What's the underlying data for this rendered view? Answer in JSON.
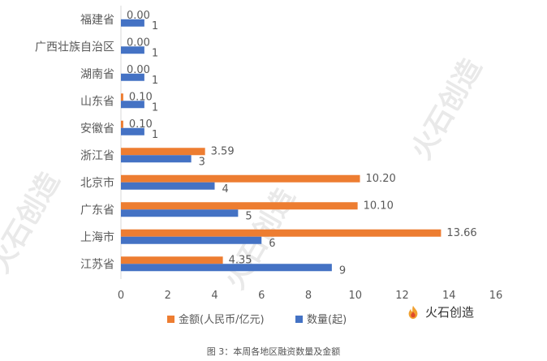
{
  "brand": {
    "name": "火石创造",
    "icon": "flame-logo-icon"
  },
  "watermark": "火石创造",
  "caption": "图 3：本周各地区融资数量及金额",
  "colors": {
    "amount": "#ED7D31",
    "count": "#4472C4",
    "axis_text": "#595959",
    "axis_line": "#D9D9D9",
    "watermark": "#E9E9E9"
  },
  "chart_data": {
    "type": "bar",
    "orientation": "horizontal",
    "categories": [
      "福建省",
      "广西壮族自治区",
      "湖南省",
      "山东省",
      "安徽省",
      "浙江省",
      "北京市",
      "广东省",
      "上海市",
      "江苏省"
    ],
    "series": [
      {
        "name": "金额(人民币/亿元)",
        "color": "#ED7D31",
        "values": [
          0.0,
          0.0,
          0.0,
          0.1,
          0.1,
          3.59,
          10.2,
          10.1,
          13.66,
          4.35
        ],
        "labels": [
          "0.00",
          "0.00",
          "0.00",
          "0.10",
          "0.10",
          "3.59",
          "10.20",
          "10.10",
          "13.66",
          "4.35"
        ]
      },
      {
        "name": "数量(起)",
        "color": "#4472C4",
        "values": [
          1,
          1,
          1,
          1,
          1,
          3,
          4,
          5,
          6,
          9
        ],
        "labels": [
          "1",
          "1",
          "1",
          "1",
          "1",
          "3",
          "4",
          "5",
          "6",
          "9"
        ]
      }
    ],
    "xlim": [
      0,
      16
    ],
    "xticks": [
      "0",
      "2",
      "4",
      "6",
      "8",
      "10",
      "12",
      "14",
      "16"
    ],
    "xtick_values": [
      0,
      2,
      4,
      6,
      8,
      10,
      12,
      14,
      16
    ],
    "grid": false,
    "legend_position": "bottom"
  }
}
